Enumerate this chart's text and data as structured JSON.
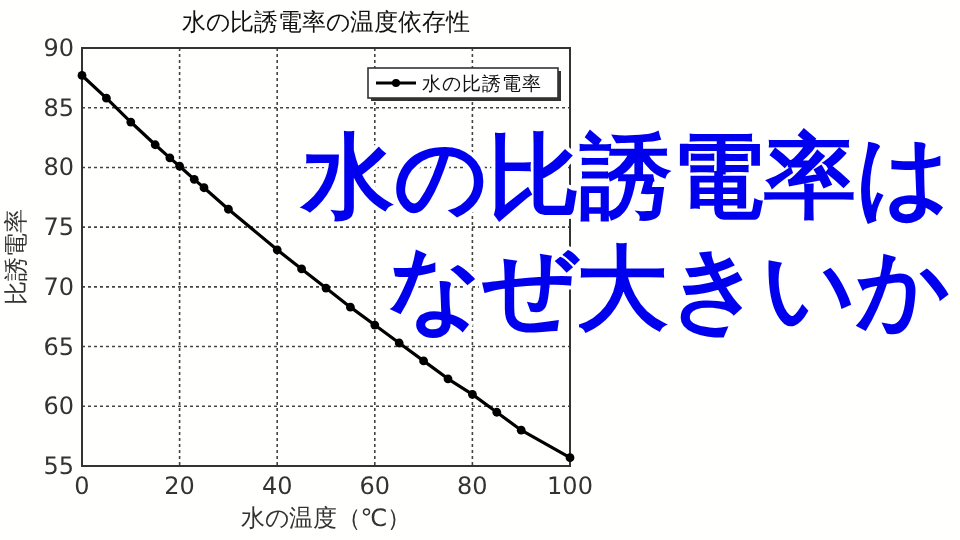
{
  "chart_data": {
    "type": "line",
    "title": "水の比誘電率の温度依存性",
    "xlabel": "水の温度（℃）",
    "ylabel": "比誘電率",
    "x": [
      0,
      5,
      10,
      15,
      18,
      20,
      23,
      25,
      30,
      40,
      45,
      50,
      55,
      60,
      65,
      70,
      75,
      80,
      85,
      90,
      100
    ],
    "series": [
      {
        "name": "水の比誘電率",
        "color": "#000000",
        "values": [
          87.7,
          85.8,
          83.8,
          81.9,
          80.8,
          80.1,
          79.0,
          78.3,
          76.5,
          73.1,
          71.5,
          69.9,
          68.3,
          66.8,
          65.3,
          63.8,
          62.3,
          61.0,
          59.5,
          58.0,
          55.7
        ]
      }
    ],
    "xlim": [
      0,
      100
    ],
    "xticks": [
      0,
      20,
      40,
      60,
      80,
      100
    ],
    "ylim": [
      55,
      90
    ],
    "yticks": [
      55,
      60,
      65,
      70,
      75,
      80,
      85,
      90
    ],
    "grid": true,
    "legend": "top right",
    "marker": "circle",
    "line_style": "solid",
    "annotations": [
      "水の比誘電率は",
      "なぜ大きいか"
    ]
  }
}
